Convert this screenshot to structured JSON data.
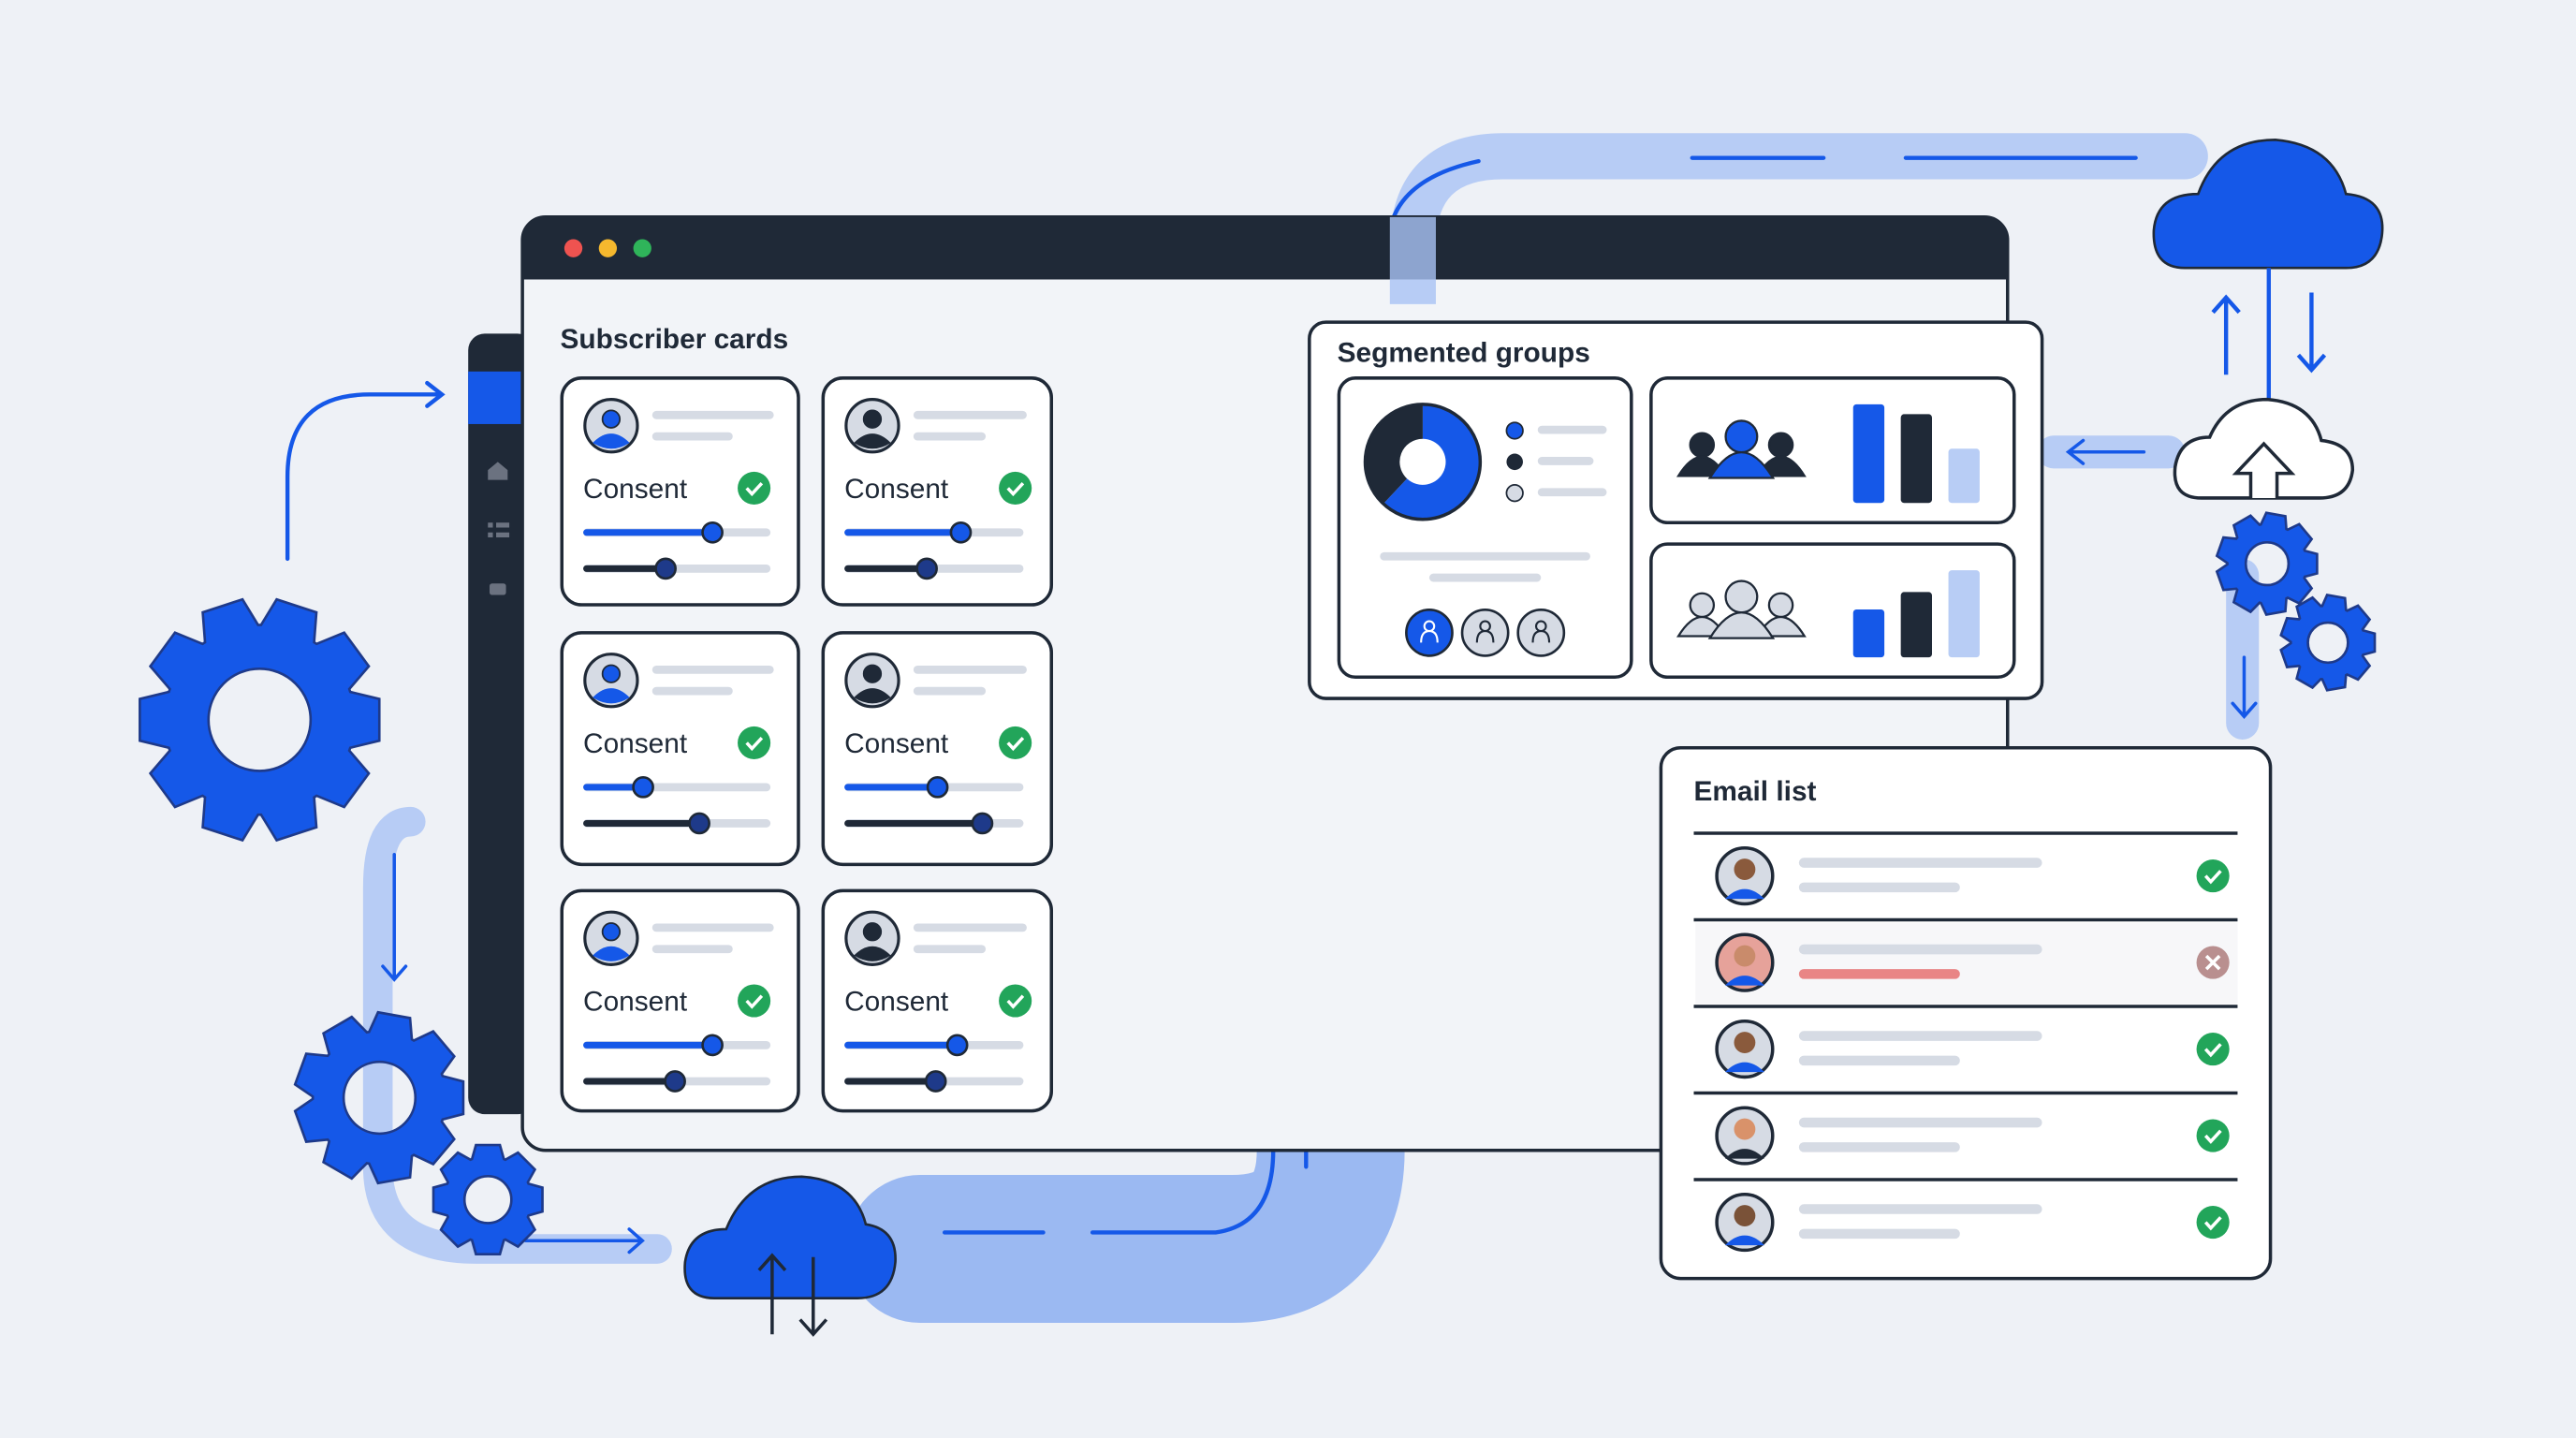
{
  "colors": {
    "accent": "#1558e8",
    "dark": "#1f2937",
    "flow": "#8fb2f3",
    "success": "#22a55a",
    "error": "#b98f8f",
    "error_bar": "#e98585",
    "placeholder": "#d6dbe4",
    "background": "#eef1f6"
  },
  "window": {
    "controls": [
      "close",
      "minimize",
      "maximize"
    ]
  },
  "subscriber_cards": {
    "title": "Subscriber cards",
    "cards": [
      {
        "label": "Consent",
        "consent": true,
        "slider_primary": 0.69,
        "slider_secondary": 0.44,
        "avatar": "blue"
      },
      {
        "label": "Consent",
        "consent": true,
        "slider_primary": 0.65,
        "slider_secondary": 0.46,
        "avatar": "dark"
      },
      {
        "label": "Consent",
        "consent": true,
        "slider_primary": 0.32,
        "slider_secondary": 0.62,
        "avatar": "blue"
      },
      {
        "label": "Consent",
        "consent": true,
        "slider_primary": 0.52,
        "slider_secondary": 0.77,
        "avatar": "dark"
      },
      {
        "label": "Consent",
        "consent": true,
        "slider_primary": 0.69,
        "slider_secondary": 0.49,
        "avatar": "blue"
      },
      {
        "label": "Consent",
        "consent": true,
        "slider_primary": 0.63,
        "slider_secondary": 0.51,
        "avatar": "dark"
      }
    ]
  },
  "segmented_groups": {
    "title": "Segmented groups",
    "donut": [
      0.62,
      0.38
    ],
    "groups": [
      {
        "icon": "group-filled-icon",
        "bars": [
          1.0,
          0.9,
          0.55
        ]
      },
      {
        "icon": "group-outline-icon",
        "bars": [
          0.55,
          0.75,
          1.0
        ]
      }
    ],
    "segment_buttons": [
      "segment-1",
      "segment-2",
      "segment-3"
    ],
    "active_segment": 0
  },
  "email_list": {
    "title": "Email list",
    "rows": [
      {
        "status": "ok"
      },
      {
        "status": "error"
      },
      {
        "status": "ok"
      },
      {
        "status": "ok"
      },
      {
        "status": "ok"
      }
    ]
  }
}
